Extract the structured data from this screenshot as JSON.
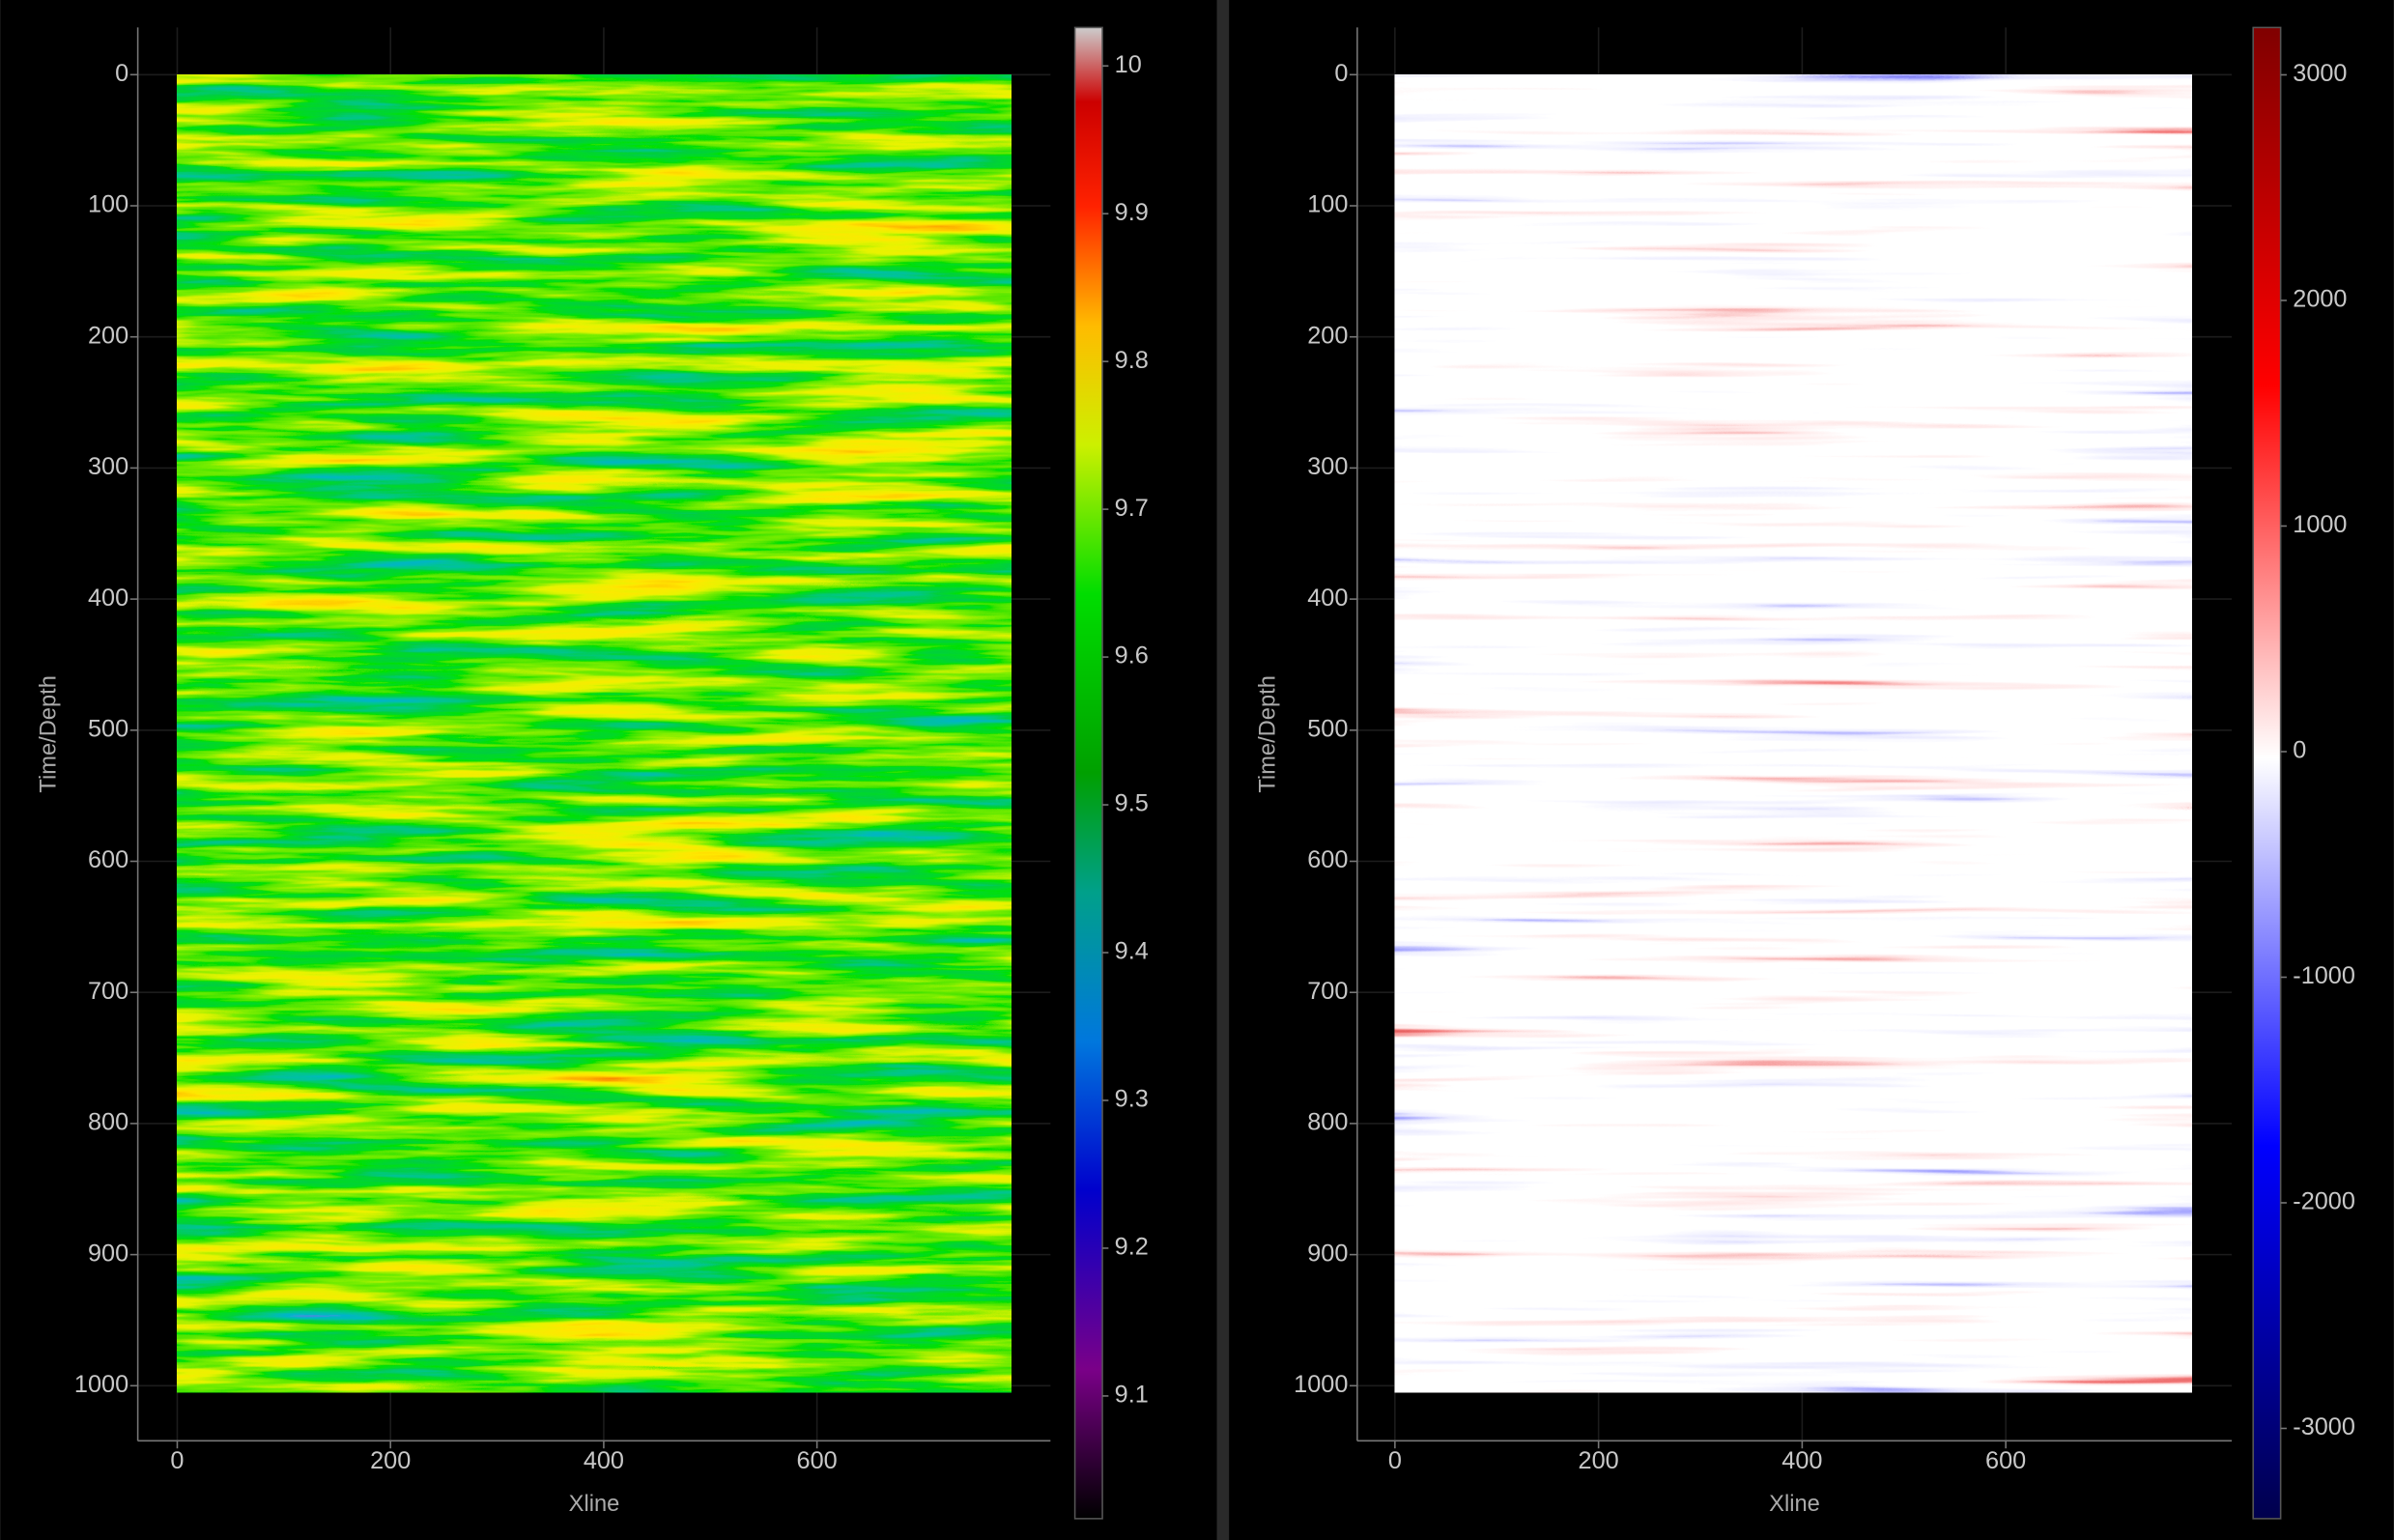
{
  "chart_data": [
    {
      "type": "heatmap",
      "xlabel": "Xline",
      "ylabel": "Time/Depth",
      "colormap": "nipy_spectral",
      "xlim": [
        -37,
        819
      ],
      "ylim": [
        1042,
        -36
      ],
      "xticks": [
        0,
        200,
        400,
        600
      ],
      "yticks": [
        0,
        100,
        200,
        300,
        400,
        500,
        600,
        700,
        800,
        900,
        1000
      ],
      "extent": {
        "x": [
          0,
          782
        ],
        "y": [
          0,
          1005
        ]
      },
      "clim": [
        9.017,
        10.026
      ],
      "cticks": [
        9.1,
        9.2,
        9.3,
        9.4,
        9.5,
        9.6,
        9.7,
        9.8,
        9.9,
        10
      ],
      "grid": true
    },
    {
      "type": "heatmap",
      "xlabel": "Xline",
      "ylabel": "Time/Depth",
      "colormap": "seismic",
      "xlim": [
        -37,
        822
      ],
      "ylim": [
        1042,
        -36
      ],
      "xticks": [
        0,
        200,
        400,
        600
      ],
      "yticks": [
        0,
        100,
        200,
        300,
        400,
        500,
        600,
        700,
        800,
        900,
        1000
      ],
      "extent": {
        "x": [
          0,
          783
        ],
        "y": [
          0,
          1005
        ]
      },
      "clim": [
        -3400,
        3210
      ],
      "cticks": [
        -3000,
        -2000,
        -1000,
        0,
        1000,
        2000,
        3000
      ],
      "grid": true
    }
  ]
}
